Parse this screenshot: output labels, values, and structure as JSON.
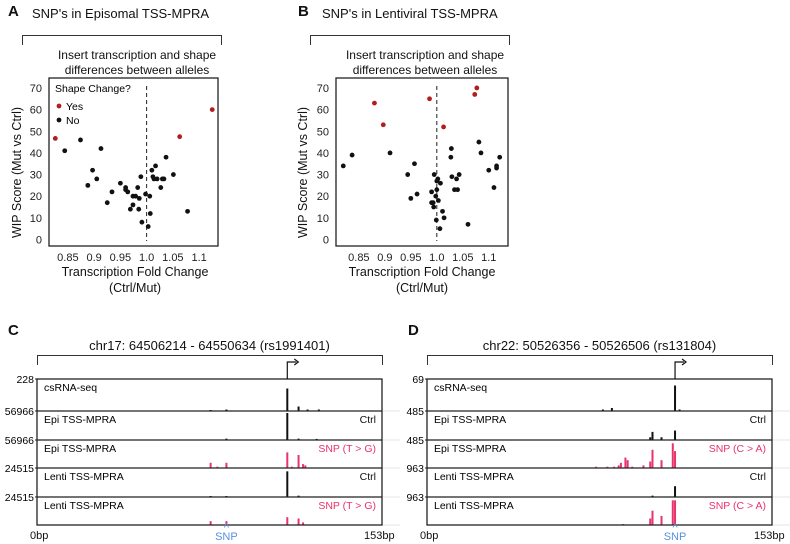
{
  "panels": {
    "A": {
      "letter": "A",
      "title": "SNP's in Episomal TSS-MPRA",
      "subtitle_line1": "Insert transcription and shape",
      "subtitle_line2": "differences between alleles"
    },
    "B": {
      "letter": "B",
      "title": "SNP's in Lentiviral TSS-MPRA",
      "subtitle_line1": "Insert transcription and shape",
      "subtitle_line2": "differences between alleles"
    },
    "C": {
      "letter": "C",
      "title": "chr17: 64506214 - 64550634 (rs1991401)",
      "start": "0bp",
      "end": "153bp",
      "snp_label": "SNP",
      "snp_caret": "^"
    },
    "D": {
      "letter": "D",
      "title": "chr22: 50526356 - 50526506 (rs131804)",
      "start": "0bp",
      "end": "153bp",
      "snp_label": "SNP",
      "snp_caret": "^"
    }
  },
  "colors": {
    "yes": "#b01e1e",
    "no": "#111111",
    "snp": "#e8336b",
    "ctrl": "#111111",
    "snp_marker": "#5b8fe0"
  },
  "chart_data": [
    {
      "type": "scatter",
      "panel": "A",
      "xlabel_line1": "Transcription Fold Change",
      "xlabel_line2": "(Ctrl/Mut)",
      "ylabel": "WIP Score (Mut vs Ctrl)",
      "xlim": [
        0.814,
        1.136
      ],
      "ylim": [
        -3,
        74.6
      ],
      "xticks": [
        "0.85",
        "0.9",
        "0.95",
        "1.0",
        "1.05",
        "1.1"
      ],
      "xtick_values": [
        0.85,
        0.9,
        0.95,
        1.0,
        1.05,
        1.1
      ],
      "yticks": [
        "0",
        "10",
        "20",
        "30",
        "40",
        "50",
        "60",
        "70"
      ],
      "ytick_values": [
        0,
        10,
        20,
        30,
        40,
        50,
        60,
        70
      ],
      "vline": 1.0,
      "legend": {
        "title": "Shape Change?",
        "entries": [
          "Yes",
          "No"
        ],
        "position": "top-left"
      },
      "series": [
        {
          "name": "Yes",
          "points": [
            [
              0.826,
              46.7
            ],
            [
              1.063,
              47.5
            ],
            [
              1.125,
              60
            ]
          ]
        },
        {
          "name": "No",
          "points": [
            [
              0.844,
              41
            ],
            [
              0.874,
              46
            ],
            [
              0.913,
              42
            ],
            [
              0.888,
              25
            ],
            [
              0.897,
              32
            ],
            [
              0.905,
              28
            ],
            [
              0.925,
              17
            ],
            [
              0.934,
              22
            ],
            [
              0.95,
              26
            ],
            [
              0.96,
              24
            ],
            [
              0.96,
              23
            ],
            [
              0.964,
              22
            ],
            [
              0.969,
              14
            ],
            [
              0.974,
              20
            ],
            [
              0.974,
              16
            ],
            [
              0.979,
              20
            ],
            [
              0.983,
              24
            ],
            [
              0.985,
              14
            ],
            [
              0.986,
              19
            ],
            [
              0.989,
              29
            ],
            [
              0.991,
              8
            ],
            [
              0.998,
              21
            ],
            [
              1.003,
              6
            ],
            [
              1.006,
              20
            ],
            [
              1.007,
              12
            ],
            [
              1.01,
              32
            ],
            [
              1.012,
              29
            ],
            [
              1.014,
              28
            ],
            [
              1.017,
              34
            ],
            [
              1.02,
              28
            ],
            [
              1.027,
              24
            ],
            [
              1.03,
              28
            ],
            [
              1.033,
              28
            ],
            [
              1.037,
              38
            ],
            [
              1.051,
              30
            ],
            [
              1.078,
              13
            ]
          ]
        }
      ]
    },
    {
      "type": "scatter",
      "panel": "B",
      "xlabel_line1": "Transcription Fold Change",
      "xlabel_line2": "(Ctrl/Mut)",
      "ylabel": "WIP Score (Mut vs Ctrl)",
      "xlim": [
        0.806,
        1.137
      ],
      "ylim": [
        -3,
        74.6
      ],
      "xticks": [
        "0.85",
        "0.9",
        "0.95",
        "1.0",
        "1.05",
        "1.1"
      ],
      "xtick_values": [
        0.85,
        0.9,
        0.95,
        1.0,
        1.05,
        1.1
      ],
      "yticks": [
        "0",
        "10",
        "20",
        "30",
        "40",
        "50",
        "60",
        "70"
      ],
      "ytick_values": [
        0,
        10,
        20,
        30,
        40,
        50,
        60,
        70
      ],
      "vline": 1.0,
      "series": [
        {
          "name": "Yes",
          "points": [
            [
              0.88,
              63
            ],
            [
              0.897,
              53
            ],
            [
              0.986,
              65
            ],
            [
              1.013,
              52
            ],
            [
              1.073,
              67
            ],
            [
              1.077,
              70
            ]
          ]
        },
        {
          "name": "No",
          "points": [
            [
              0.82,
              34
            ],
            [
              0.837,
              39
            ],
            [
              0.91,
              40
            ],
            [
              0.944,
              30
            ],
            [
              0.95,
              19
            ],
            [
              0.957,
              35
            ],
            [
              0.962,
              21
            ],
            [
              0.99,
              22
            ],
            [
              0.99,
              17
            ],
            [
              0.993,
              17
            ],
            [
              0.995,
              30
            ],
            [
              0.994,
              15
            ],
            [
              0.998,
              20
            ],
            [
              1.0,
              23
            ],
            [
              1.0,
              27
            ],
            [
              1.002,
              28
            ],
            [
              1.003,
              18
            ],
            [
              1.007,
              26
            ],
            [
              0.999,
              9
            ],
            [
              1.006,
              5
            ],
            [
              1.011,
              13
            ],
            [
              1.014,
              10
            ],
            [
              1.027,
              38
            ],
            [
              1.028,
              42
            ],
            [
              1.029,
              29
            ],
            [
              1.034,
              23
            ],
            [
              1.038,
              28
            ],
            [
              1.04,
              23
            ],
            [
              1.043,
              30
            ],
            [
              1.06,
              7
            ],
            [
              1.081,
              45
            ],
            [
              1.085,
              40
            ],
            [
              1.1,
              32
            ],
            [
              1.11,
              24
            ],
            [
              1.115,
              34
            ],
            [
              1.115,
              33
            ],
            [
              1.121,
              38
            ]
          ]
        }
      ]
    },
    {
      "type": "bar",
      "panel": "C",
      "xlim": [
        0,
        153
      ],
      "tss_bp": 111,
      "snp_bp": 84,
      "tracks": [
        {
          "label": "csRNA-seq",
          "scale": "228",
          "tag": "",
          "kind": "ctrl",
          "bars": [
            [
              111,
              0.75
            ],
            [
              116,
              0.15
            ],
            [
              120,
              0.05
            ],
            [
              125,
              0.05
            ],
            [
              77,
              0.03
            ],
            [
              84,
              0.05
            ]
          ]
        },
        {
          "label": "Epi TSS-MPRA",
          "scale": "56966",
          "tag": "Ctrl",
          "kind": "ctrl",
          "bars": [
            [
              111,
              1.0
            ],
            [
              116,
              0.05
            ],
            [
              124,
              0.04
            ],
            [
              84,
              0.05
            ]
          ]
        },
        {
          "label": "Epi TSS-MPRA",
          "scale": "56966",
          "tag": "SNP (T > G)",
          "kind": "snp",
          "bars": [
            [
              111,
              0.6
            ],
            [
              116,
              0.5
            ],
            [
              113,
              0.05
            ],
            [
              118,
              0.15
            ],
            [
              119,
              0.1
            ],
            [
              77,
              0.2
            ],
            [
              80,
              0.05
            ],
            [
              84,
              0.2
            ]
          ]
        },
        {
          "label": "Lenti TSS-MPRA",
          "scale": "24515",
          "tag": "Ctrl",
          "kind": "ctrl",
          "bars": [
            [
              111,
              0.95
            ],
            [
              116,
              0.05
            ],
            [
              84,
              0.03
            ],
            [
              77,
              0.03
            ]
          ]
        },
        {
          "label": "Lenti TSS-MPRA",
          "scale": "24515",
          "tag": "SNP (T > G)",
          "kind": "snp",
          "bars": [
            [
              111,
              0.3
            ],
            [
              116,
              0.25
            ],
            [
              118,
              0.1
            ],
            [
              77,
              0.15
            ],
            [
              84,
              0.15
            ]
          ]
        }
      ]
    },
    {
      "type": "bar",
      "panel": "D",
      "xlim": [
        0,
        153
      ],
      "tss_bp": 110,
      "snp_bp": 110,
      "tracks": [
        {
          "label": "csRNA-seq",
          "scale": "69",
          "tag": "",
          "kind": "ctrl",
          "bars": [
            [
              110,
              0.85
            ],
            [
              112,
              0.05
            ],
            [
              82,
              0.1
            ],
            [
              78,
              0.05
            ]
          ]
        },
        {
          "label": "Epi TSS-MPRA",
          "scale": "485",
          "tag": "Ctrl",
          "kind": "ctrl",
          "bars": [
            [
              110,
              0.35
            ],
            [
              100,
              0.3
            ],
            [
              99,
              0.1
            ],
            [
              104,
              0.1
            ]
          ]
        },
        {
          "label": "Epi TSS-MPRA",
          "scale": "485",
          "tag": "SNP (C > A)",
          "kind": "snp",
          "bars": [
            [
              109,
              0.95
            ],
            [
              110,
              0.65
            ],
            [
              100,
              0.7
            ],
            [
              99,
              0.25
            ],
            [
              104,
              0.3
            ],
            [
              96,
              0.1
            ],
            [
              88,
              0.4
            ],
            [
              89,
              0.3
            ],
            [
              91,
              0.05
            ],
            [
              86,
              0.2
            ],
            [
              85,
              0.1
            ],
            [
              83,
              0.05
            ],
            [
              80,
              0.05
            ],
            [
              75,
              0.05
            ]
          ]
        },
        {
          "label": "Lenti TSS-MPRA",
          "scale": "963",
          "tag": "Ctrl",
          "kind": "ctrl",
          "bars": [
            [
              110,
              0.4
            ],
            [
              100,
              0.05
            ]
          ]
        },
        {
          "label": "Lenti TSS-MPRA",
          "scale": "963",
          "tag": "SNP (C > A)",
          "kind": "snp",
          "bars": [
            [
              109,
              0.95
            ],
            [
              110,
              0.95
            ],
            [
              100,
              0.55
            ],
            [
              99,
              0.25
            ],
            [
              104,
              0.35
            ],
            [
              87,
              0.02
            ]
          ]
        }
      ]
    }
  ]
}
